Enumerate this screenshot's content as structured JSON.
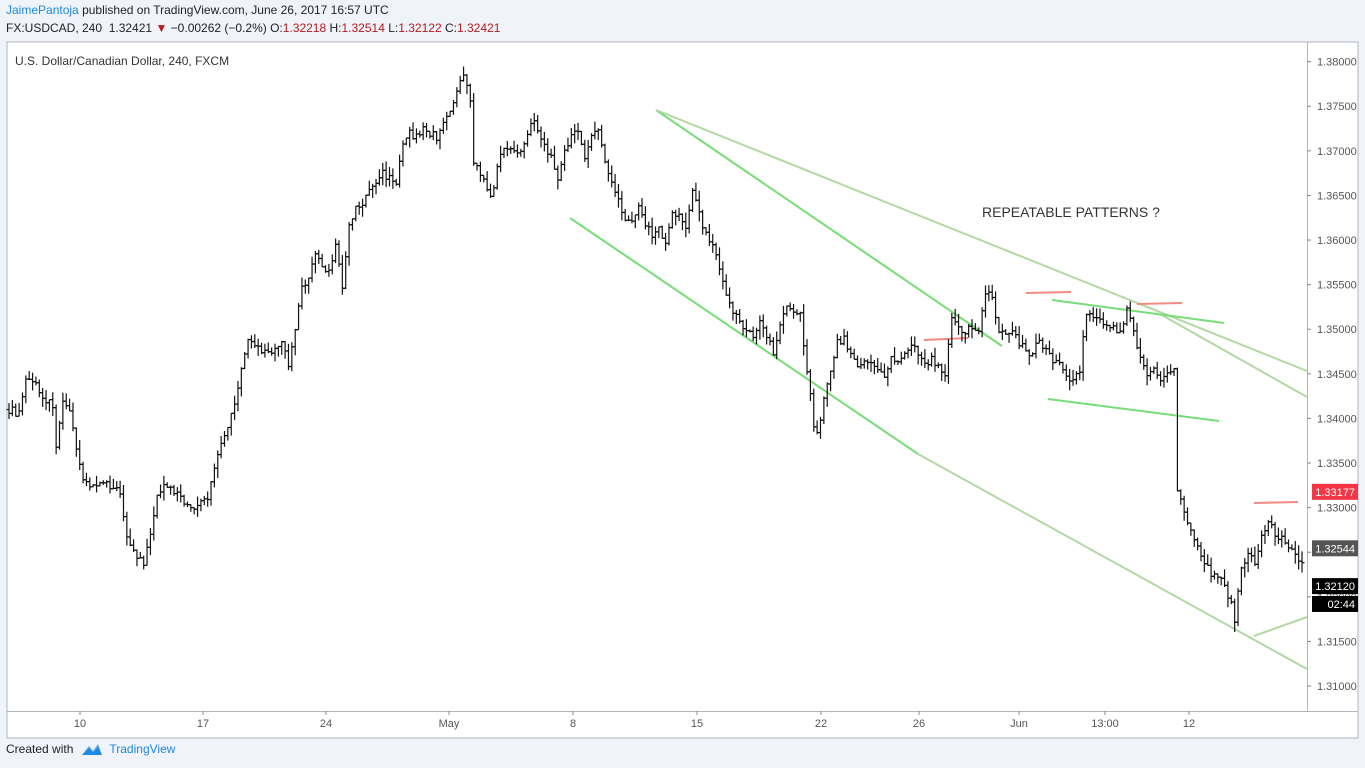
{
  "header": {
    "author": "JaimePantoja",
    "published_text": "published on TradingView.com, June 26, 2017 16:57 UTC",
    "symbol": "FX:USDCAD, 240",
    "last": "1.32421",
    "change": "−0.00262 (−0.2%)",
    "o_label": "O:",
    "o_value": "1.32218",
    "h_label": "H:",
    "h_value": "1.32514",
    "l_label": "L:",
    "l_value": "1.32122",
    "c_label": "C:",
    "c_value": "1.32421"
  },
  "footer": {
    "created_with": "Created with",
    "brand": "TradingView"
  },
  "colors": {
    "candle": "#111111",
    "channel_bright": "#77dd77",
    "channel_faded": "#b3d9a3",
    "resistance_mark": "#f28b82",
    "price_tag_red": "#f23645",
    "price_tag_gray": "#555555",
    "price_tag_black": "#000000"
  },
  "chart_data": {
    "type": "ohlc",
    "title": "U.S. Dollar/Canadian Dollar, 240, FXCM",
    "annotation": "REPEATABLE PATTERNS ?",
    "x_ticks": [
      "10",
      "17",
      "24",
      "May",
      "8",
      "15",
      "22",
      "26",
      "Jun",
      "13:00",
      "12"
    ],
    "y_ticks": [
      "1.38000",
      "1.37500",
      "1.37000",
      "1.36500",
      "1.36000",
      "1.35500",
      "1.35000",
      "1.34500",
      "1.34000",
      "1.33500",
      "1.33000",
      "1.32500",
      "1.32000",
      "1.31500",
      "1.31000"
    ],
    "ylim": [
      1.3072,
      1.3822
    ],
    "price_tags": [
      {
        "label": "1.33177",
        "value": 1.33177,
        "style": "red"
      },
      {
        "label": "1.32544",
        "value": 1.32544,
        "style": "gray"
      },
      {
        "label": "1.32120",
        "value": 1.3212,
        "style": "black"
      },
      {
        "label": "02:44",
        "value": 1.3192,
        "style": "black"
      }
    ],
    "price_path": [
      [
        0,
        1.341
      ],
      [
        3,
        1.3405
      ],
      [
        5,
        1.344
      ],
      [
        7,
        1.3445
      ],
      [
        9,
        1.343
      ],
      [
        11,
        1.342
      ],
      [
        13,
        1.3415
      ],
      [
        14,
        1.337
      ],
      [
        16,
        1.3415
      ],
      [
        18,
        1.3405
      ],
      [
        20,
        1.337
      ],
      [
        22,
        1.333
      ],
      [
        25,
        1.3325
      ],
      [
        28,
        1.3325
      ],
      [
        31,
        1.3325
      ],
      [
        33,
        1.3315
      ],
      [
        35,
        1.327
      ],
      [
        37,
        1.325
      ],
      [
        40,
        1.3235
      ],
      [
        42,
        1.327
      ],
      [
        44,
        1.331
      ],
      [
        46,
        1.333
      ],
      [
        48,
        1.332
      ],
      [
        51,
        1.3315
      ],
      [
        53,
        1.33
      ],
      [
        55,
        1.33
      ],
      [
        57,
        1.3305
      ],
      [
        59,
        1.331
      ],
      [
        61,
        1.3345
      ],
      [
        63,
        1.3375
      ],
      [
        65,
        1.339
      ],
      [
        67,
        1.342
      ],
      [
        69,
        1.3455
      ],
      [
        71,
        1.3485
      ],
      [
        73,
        1.3485
      ],
      [
        75,
        1.347
      ],
      [
        77,
        1.3475
      ],
      [
        79,
        1.3475
      ],
      [
        81,
        1.349
      ],
      [
        83,
        1.3455
      ],
      [
        85,
        1.35
      ],
      [
        87,
        1.3545
      ],
      [
        89,
        1.356
      ],
      [
        91,
        1.3585
      ],
      [
        93,
        1.357
      ],
      [
        95,
        1.3565
      ],
      [
        97,
        1.3595
      ],
      [
        99,
        1.3545
      ],
      [
        101,
        1.3615
      ],
      [
        103,
        1.3635
      ],
      [
        105,
        1.364
      ],
      [
        107,
        1.3655
      ],
      [
        109,
        1.3665
      ],
      [
        111,
        1.3675
      ],
      [
        113,
        1.367
      ],
      [
        115,
        1.3665
      ],
      [
        117,
        1.3705
      ],
      [
        119,
        1.372
      ],
      [
        121,
        1.3715
      ],
      [
        123,
        1.3725
      ],
      [
        125,
        1.372
      ],
      [
        127,
        1.3715
      ],
      [
        129,
        1.3735
      ],
      [
        131,
        1.374
      ],
      [
        133,
        1.3765
      ],
      [
        135,
        1.3785
      ],
      [
        137,
        1.3755
      ],
      [
        138,
        1.369
      ],
      [
        140,
        1.3675
      ],
      [
        142,
        1.3655
      ],
      [
        143,
        1.3645
      ],
      [
        145,
        1.368
      ],
      [
        147,
        1.3705
      ],
      [
        149,
        1.3705
      ],
      [
        151,
        1.3695
      ],
      [
        153,
        1.371
      ],
      [
        155,
        1.3735
      ],
      [
        157,
        1.3725
      ],
      [
        159,
        1.3705
      ],
      [
        161,
        1.3695
      ],
      [
        163,
        1.3665
      ],
      [
        165,
        1.3705
      ],
      [
        167,
        1.3715
      ],
      [
        169,
        1.3725
      ],
      [
        171,
        1.3695
      ],
      [
        173,
        1.3715
      ],
      [
        175,
        1.3725
      ],
      [
        177,
        1.3685
      ],
      [
        179,
        1.3665
      ],
      [
        181,
        1.365
      ],
      [
        183,
        1.362
      ],
      [
        185,
        1.3625
      ],
      [
        187,
        1.3635
      ],
      [
        189,
        1.362
      ],
      [
        191,
        1.3605
      ],
      [
        193,
        1.3615
      ],
      [
        195,
        1.3595
      ],
      [
        197,
        1.363
      ],
      [
        199,
        1.3625
      ],
      [
        201,
        1.3615
      ],
      [
        203,
        1.366
      ],
      [
        205,
        1.363
      ],
      [
        207,
        1.3605
      ],
      [
        209,
        1.3595
      ],
      [
        211,
        1.3565
      ],
      [
        213,
        1.3535
      ],
      [
        215,
        1.352
      ],
      [
        217,
        1.351
      ],
      [
        219,
        1.35
      ],
      [
        221,
        1.349
      ],
      [
        223,
        1.351
      ],
      [
        225,
        1.3495
      ],
      [
        227,
        1.3475
      ],
      [
        229,
        1.3505
      ],
      [
        231,
        1.353
      ],
      [
        233,
        1.352
      ],
      [
        235,
        1.3515
      ],
      [
        237,
        1.3455
      ],
      [
        239,
        1.3395
      ],
      [
        240,
        1.3385
      ],
      [
        242,
        1.342
      ],
      [
        244,
        1.3455
      ],
      [
        246,
        1.3485
      ],
      [
        248,
        1.349
      ],
      [
        250,
        1.347
      ],
      [
        252,
        1.346
      ],
      [
        254,
        1.3465
      ],
      [
        256,
        1.346
      ],
      [
        258,
        1.3455
      ],
      [
        260,
        1.3445
      ],
      [
        262,
        1.3465
      ],
      [
        264,
        1.3465
      ],
      [
        266,
        1.347
      ],
      [
        268,
        1.348
      ],
      [
        270,
        1.3475
      ],
      [
        272,
        1.346
      ],
      [
        274,
        1.3465
      ],
      [
        276,
        1.346
      ],
      [
        278,
        1.345
      ],
      [
        280,
        1.351
      ],
      [
        282,
        1.35
      ],
      [
        284,
        1.3495
      ],
      [
        286,
        1.3505
      ],
      [
        288,
        1.3495
      ],
      [
        290,
        1.354
      ],
      [
        292,
        1.3535
      ],
      [
        294,
        1.35
      ],
      [
        296,
        1.3495
      ],
      [
        298,
        1.35
      ],
      [
        300,
        1.3485
      ],
      [
        302,
        1.3475
      ],
      [
        304,
        1.347
      ],
      [
        306,
        1.349
      ],
      [
        308,
        1.3475
      ],
      [
        310,
        1.3465
      ],
      [
        312,
        1.346
      ],
      [
        314,
        1.3445
      ],
      [
        316,
        1.3445
      ],
      [
        318,
        1.3455
      ],
      [
        320,
        1.352
      ],
      [
        322,
        1.3515
      ],
      [
        324,
        1.351
      ],
      [
        326,
        1.3505
      ],
      [
        328,
        1.35
      ],
      [
        330,
        1.3495
      ],
      [
        332,
        1.3525
      ],
      [
        334,
        1.35
      ],
      [
        336,
        1.3465
      ],
      [
        338,
        1.345
      ],
      [
        340,
        1.3455
      ],
      [
        342,
        1.3445
      ],
      [
        344,
        1.3455
      ],
      [
        346,
        1.3455
      ],
      [
        347,
        1.332
      ],
      [
        349,
        1.3295
      ],
      [
        351,
        1.3275
      ],
      [
        353,
        1.3255
      ],
      [
        355,
        1.324
      ],
      [
        357,
        1.3225
      ],
      [
        359,
        1.322
      ],
      [
        361,
        1.3215
      ],
      [
        363,
        1.319
      ],
      [
        364,
        1.3175
      ],
      [
        366,
        1.3235
      ],
      [
        368,
        1.3245
      ],
      [
        370,
        1.324
      ],
      [
        372,
        1.3265
      ],
      [
        374,
        1.3285
      ],
      [
        376,
        1.327
      ],
      [
        378,
        1.3265
      ],
      [
        380,
        1.3255
      ],
      [
        382,
        1.3245
      ],
      [
        384,
        1.3242
      ]
    ]
  }
}
